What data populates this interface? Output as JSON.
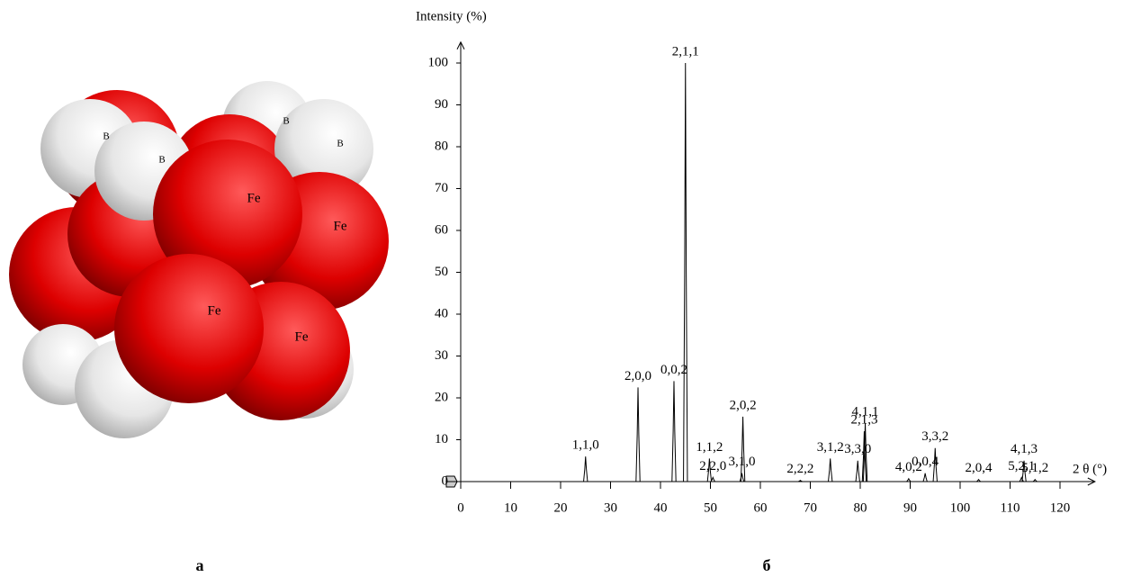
{
  "structure": {
    "atoms": [
      "B",
      "B",
      "B",
      "B",
      "Fe",
      "Fe",
      "Fe",
      "Fe"
    ]
  },
  "panel_labels": [
    "а",
    "б"
  ],
  "chart_data": {
    "type": "peaks",
    "y_label": "Intensity (%)",
    "x_label": "2 θ (°)",
    "x": [
      25,
      35.5,
      42.7,
      45,
      49.8,
      50.5,
      56.5,
      56.3,
      68,
      74,
      79.5,
      81,
      80.8,
      89.7,
      93,
      95,
      103.7,
      112.8,
      112.3,
      115
    ],
    "values": [
      6,
      22.5,
      24,
      100,
      5.5,
      1,
      15.5,
      2,
      0.3,
      5.5,
      5,
      14,
      12,
      0.7,
      2,
      8,
      0.5,
      5,
      1,
      0.5
    ],
    "labels": [
      "1,1,0",
      "2,0,0",
      "0,0,2",
      "2,1,1",
      "1,1,2",
      "2,2,0",
      "2,0,2",
      "3,1,0",
      "2,2,2",
      "3,1,2",
      "3,3,0",
      "4,1,1",
      "2,1,3",
      "4,0,2",
      "0,0,4",
      "3,3,2",
      "2,0,4",
      "4,1,3",
      "5,2,1",
      "5,1,2"
    ],
    "color": "#000000",
    "xlim": [
      -3,
      127
    ],
    "ylim": [
      0,
      105
    ],
    "xticks": [
      0,
      10,
      20,
      30,
      40,
      50,
      60,
      70,
      80,
      90,
      100,
      110,
      120
    ],
    "yticks": [
      0,
      10,
      20,
      30,
      40,
      50,
      60,
      70,
      80,
      90,
      100
    ]
  }
}
